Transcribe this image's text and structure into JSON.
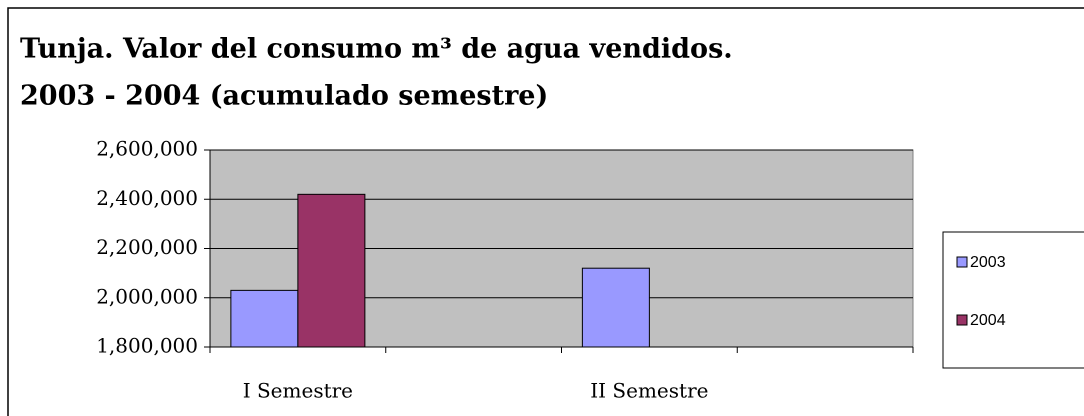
{
  "chart_data": {
    "type": "bar",
    "title": [
      "Tunja. Valor del consumo m³ de agua vendidos.",
      "2003 - 2004 (acumulado semestre)"
    ],
    "categories": [
      "I Semestre",
      "II Semestre"
    ],
    "series": [
      {
        "name": "2003",
        "color": "#9999ff",
        "values": [
          2030000,
          2120000
        ]
      },
      {
        "name": "2004",
        "color": "#993366",
        "values": [
          2420000,
          null
        ]
      }
    ],
    "ylim": [
      1800000,
      2600000
    ],
    "yticks": [
      {
        "value": 1800000,
        "label": "1,800,000"
      },
      {
        "value": 2000000,
        "label": "2,000,000"
      },
      {
        "value": 2200000,
        "label": "2,200,000"
      },
      {
        "value": 2400000,
        "label": "2,400,000"
      },
      {
        "value": 2600000,
        "label": "2,600,000"
      }
    ],
    "grid": true,
    "plot_background": "#c0c0c0",
    "legend": "right"
  }
}
